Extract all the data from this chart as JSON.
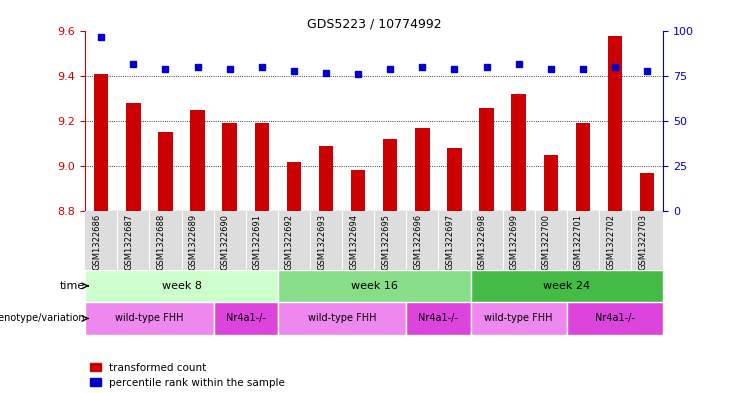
{
  "title": "GDS5223 / 10774992",
  "samples": [
    "GSM1322686",
    "GSM1322687",
    "GSM1322688",
    "GSM1322689",
    "GSM1322690",
    "GSM1322691",
    "GSM1322692",
    "GSM1322693",
    "GSM1322694",
    "GSM1322695",
    "GSM1322696",
    "GSM1322697",
    "GSM1322698",
    "GSM1322699",
    "GSM1322700",
    "GSM1322701",
    "GSM1322702",
    "GSM1322703"
  ],
  "transformed_counts": [
    9.41,
    9.28,
    9.15,
    9.25,
    9.19,
    9.19,
    9.02,
    9.09,
    8.98,
    9.12,
    9.17,
    9.08,
    9.26,
    9.32,
    9.05,
    9.19,
    9.58,
    8.97
  ],
  "percentile_ranks": [
    97,
    82,
    79,
    80,
    79,
    80,
    78,
    77,
    76,
    79,
    80,
    79,
    80,
    82,
    79,
    79,
    80,
    78
  ],
  "ylim_left": [
    8.8,
    9.6
  ],
  "ylim_right": [
    0,
    100
  ],
  "yticks_left": [
    8.8,
    9.0,
    9.2,
    9.4,
    9.6
  ],
  "yticks_right": [
    0,
    25,
    50,
    75,
    100
  ],
  "bar_color": "#cc0000",
  "dot_color": "#0000cc",
  "background_color": "#ffffff",
  "time_groups": [
    {
      "label": "week 8",
      "start": 0,
      "end": 6,
      "color": "#ccffcc"
    },
    {
      "label": "week 16",
      "start": 6,
      "end": 12,
      "color": "#88dd88"
    },
    {
      "label": "week 24",
      "start": 12,
      "end": 18,
      "color": "#44bb44"
    }
  ],
  "genotype_groups": [
    {
      "label": "wild-type FHH",
      "start": 0,
      "end": 4,
      "color": "#ee88ee"
    },
    {
      "label": "Nr4a1-/-",
      "start": 4,
      "end": 6,
      "color": "#dd44dd"
    },
    {
      "label": "wild-type FHH",
      "start": 6,
      "end": 10,
      "color": "#ee88ee"
    },
    {
      "label": "Nr4a1-/-",
      "start": 10,
      "end": 12,
      "color": "#dd44dd"
    },
    {
      "label": "wild-type FHH",
      "start": 12,
      "end": 15,
      "color": "#ee88ee"
    },
    {
      "label": "Nr4a1-/-",
      "start": 15,
      "end": 18,
      "color": "#dd44dd"
    }
  ],
  "tick_color_left": "#cc0000",
  "tick_color_right": "#0000cc",
  "sample_bg_color": "#dddddd",
  "legend_items": [
    {
      "color": "#cc0000",
      "label": "transformed count"
    },
    {
      "color": "#0000cc",
      "label": "percentile rank within the sample"
    }
  ]
}
